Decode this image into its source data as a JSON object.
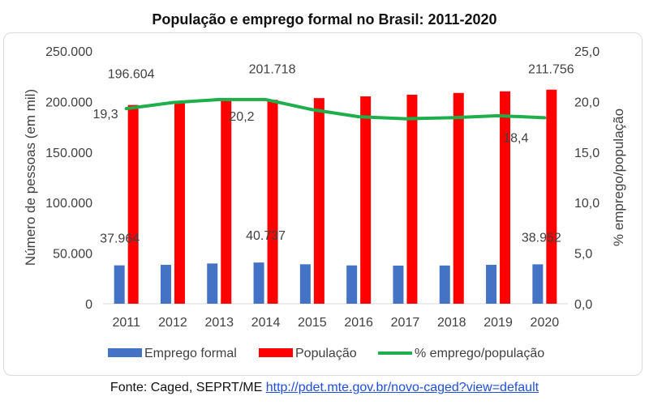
{
  "chart_data": {
    "type": "bar",
    "title": "População e emprego formal no Brasil: 2011-2020",
    "categories": [
      "2011",
      "2012",
      "2013",
      "2014",
      "2015",
      "2016",
      "2017",
      "2018",
      "2019",
      "2020"
    ],
    "ylabel": "Número de pessoas (em mil)",
    "y2label": "% emprego/população",
    "ylim": [
      0,
      250000
    ],
    "y2lim": [
      0,
      25
    ],
    "yticks": [
      "0",
      "50.000",
      "100.000",
      "150.000",
      "200.000",
      "250.000"
    ],
    "y2ticks": [
      "0,0",
      "5,0",
      "10,0",
      "15,0",
      "20,0",
      "25,0"
    ],
    "grid": false,
    "legend_position": "bottom",
    "series": [
      {
        "name": "Emprego formal",
        "kind": "bar",
        "color": "#4472c4",
        "values": [
          37964,
          38500,
          39800,
          40737,
          39000,
          37900,
          37700,
          37800,
          38500,
          38952
        ]
      },
      {
        "name": "População",
        "kind": "bar",
        "color": "#ff0000",
        "values": [
          196604,
          198500,
          200600,
          201718,
          203400,
          205100,
          206800,
          208500,
          210100,
          211756
        ]
      },
      {
        "name": "% emprego/população",
        "kind": "line",
        "color": "#1eae4b",
        "axis": "secondary",
        "values": [
          19.3,
          19.9,
          20.2,
          20.2,
          19.2,
          18.5,
          18.3,
          18.4,
          18.6,
          18.4
        ]
      }
    ],
    "data_labels": [
      {
        "text": "196.604",
        "series": 1,
        "index": 0
      },
      {
        "text": "201.718",
        "series": 1,
        "index": 3
      },
      {
        "text": "211.756",
        "series": 1,
        "index": 9
      },
      {
        "text": "37.964",
        "series": 0,
        "index": 0
      },
      {
        "text": "40.737",
        "series": 0,
        "index": 3
      },
      {
        "text": "38.952",
        "series": 0,
        "index": 9
      },
      {
        "text": "19,3",
        "series": 2,
        "index": 0
      },
      {
        "text": "20,2",
        "series": 2,
        "index": 3
      },
      {
        "text": "18,4",
        "series": 2,
        "index": 9
      }
    ]
  },
  "source": {
    "prefix": "Fonte: Caged, SEPRT/ME ",
    "link": "http://pdet.mte.gov.br/novo-caged?view=default"
  }
}
